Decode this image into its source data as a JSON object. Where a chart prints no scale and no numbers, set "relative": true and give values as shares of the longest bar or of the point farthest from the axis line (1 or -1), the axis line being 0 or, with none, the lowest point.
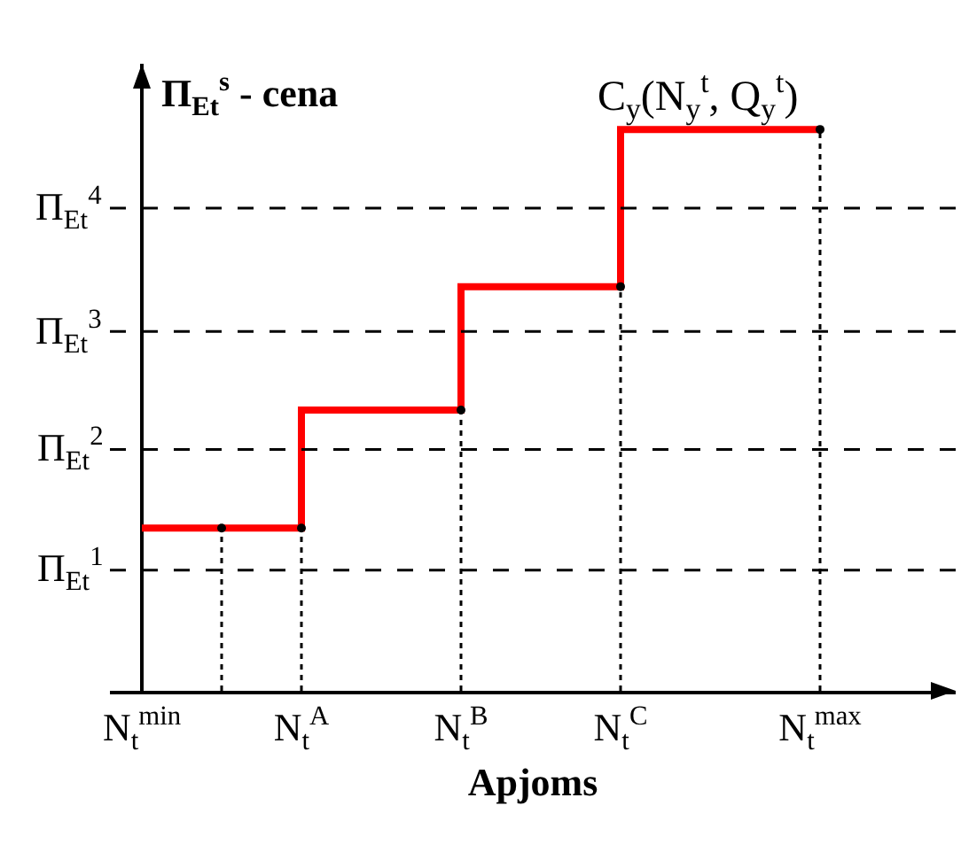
{
  "chart_data": {
    "type": "step",
    "relative": true,
    "ylabel": "Π$_{Et}$$^{s}$ - cena",
    "xlabel": "Apjoms",
    "categories": [
      "N$_{t}$$^{min}$",
      null,
      null,
      null,
      "N$_{t}$$^{A}$",
      null,
      null,
      null,
      "N$_{t}$$^{B}$",
      null,
      null,
      null,
      "N$_{t}$$^{C}$",
      null,
      null,
      null,
      null,
      "N$_{t}$$^{max}$"
    ],
    "series": [
      {
        "color": "#ff0000",
        "values": [
          0.29,
          0.29,
          0.29,
          0.29,
          0.5,
          0.5,
          0.5,
          0.5,
          0.72,
          0.72,
          0.72,
          0.72,
          1,
          1,
          1,
          1,
          1,
          1
        ]
      },
      {
        "type": "lollipop",
        "color": "#000000",
        "line_style": "dotted",
        "marker": "circle",
        "values": [
          null,
          null,
          0.29,
          null,
          0.29,
          null,
          null,
          null,
          0.5,
          null,
          null,
          null,
          0.72,
          null,
          null,
          null,
          null,
          1
        ]
      }
    ],
    "line_style": "solid",
    "marker": "none",
    "ref_lines": [
      {
        "axis": "y",
        "value": 0.215,
        "label": "Π$_{Et}$$^{1}$",
        "line_style": "dashed"
      },
      {
        "axis": "y",
        "value": 0.43,
        "label": "Π$_{Et}$$^{2}$",
        "line_style": "dashed"
      },
      {
        "axis": "y",
        "value": 0.64,
        "label": "Π$_{Et}$$^{3}$",
        "line_style": "dashed"
      },
      {
        "axis": "y",
        "value": 0.86,
        "label": "Π$_{Et}$$^{4}$",
        "line_style": "dashed"
      }
    ],
    "annotations": [
      "C$_{y}$(N$_{y}$$^{t}$, Q$_{y}$$^{t}$)"
    ]
  }
}
